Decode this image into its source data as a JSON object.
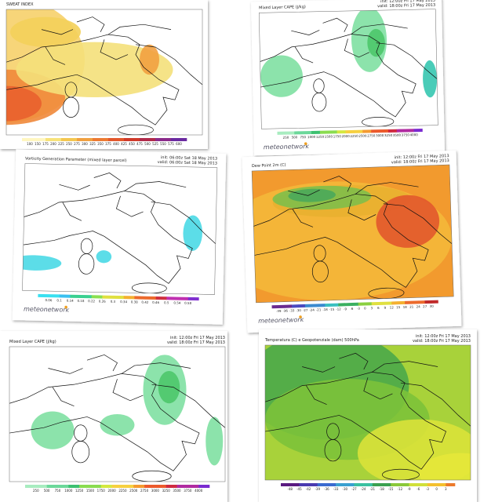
{
  "panels": [
    {
      "title": "SWEAT INDEX",
      "colorbar": [
        100,
        150,
        175,
        200,
        225,
        250,
        275,
        300,
        325,
        350,
        375,
        400,
        425,
        450,
        475,
        500,
        525,
        550,
        575,
        600
      ]
    },
    {
      "title": "Mixed Layer CAPE (J/kg)",
      "init": "init: 12:00z Fri 17 May 2013",
      "valid": "valid: 18:00z Fri 17 May 2013",
      "colorbar": [
        250,
        500,
        750,
        1000,
        1250,
        1500,
        1750,
        2000,
        2250,
        2500,
        2750,
        3000,
        3250,
        3500,
        3750,
        4000
      ],
      "logo": "meteonetwork"
    },
    {
      "title": "Vorticity Generation Parameter (mixed layer parcel)",
      "init": "init: 06:00z Sat 18 May 2013",
      "valid": "valid: 06:00z Sat 18 May 2013",
      "colorbar": [
        0.06,
        0.1,
        0.14,
        0.18,
        0.22,
        0.26,
        0.3,
        0.34,
        0.38,
        0.42,
        0.46,
        0.5,
        0.54,
        0.58
      ],
      "logo": "meteonetwork"
    },
    {
      "title": "Dew Point 2m (C)",
      "init": "init: 12:00z Fri 17 May 2013",
      "valid": "valid: 18:00z Fri 17 May 2013",
      "colorbar": [
        -39,
        -36,
        -33,
        -30,
        -27,
        -24,
        -21,
        -18,
        -15,
        -12,
        -9,
        -6,
        -3,
        0,
        3,
        6,
        9,
        12,
        15,
        18,
        21,
        24,
        27,
        30
      ],
      "logo": "meteonetwork"
    },
    {
      "title": "Mixed Layer CAPE (J/kg)",
      "init": "init: 12:00z Fri 17 May 2013",
      "valid": "valid: 18:00z Fri 17 May 2013",
      "colorbar": [
        250,
        500,
        750,
        1000,
        1250,
        1500,
        1750,
        2000,
        2250,
        2500,
        2750,
        3000,
        3250,
        3500,
        3750,
        4000
      ]
    },
    {
      "title": "Temperatura (C) e Geopotenziale (dam) 500hPa",
      "init": "init: 12:00z Fri 17 May 2013",
      "valid": "valid: 18:00z Fri 17 May 2013",
      "colorbar": [
        -48,
        -45,
        -42,
        -39,
        -36,
        -33,
        -30,
        -27,
        -24,
        -21,
        -18,
        -15,
        -12,
        -9,
        -6,
        -3,
        0,
        3
      ]
    }
  ]
}
